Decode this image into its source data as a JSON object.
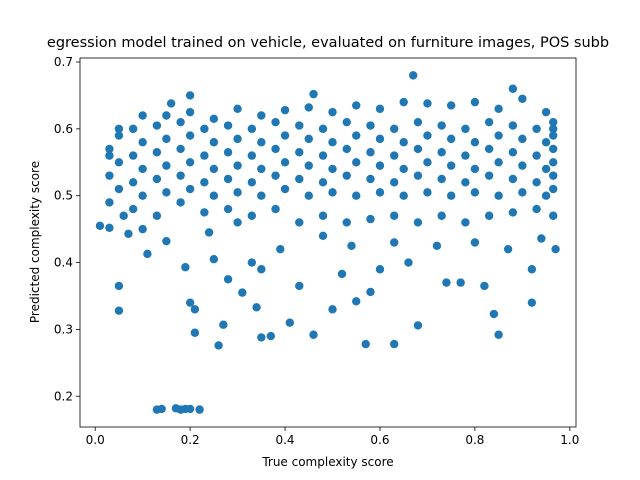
{
  "chart_data": {
    "type": "scatter",
    "title": "egression model trained on vehicle, evaluated on furniture images, POS subb",
    "x_label": "True complexity score",
    "y_label": "Predicted complexity score",
    "color": "#1f77b4",
    "xlim": [
      -0.032,
      1.013
    ],
    "ylim": [
      0.154,
      0.706
    ],
    "xticks": [
      {
        "value": 0,
        "label": "0.0"
      },
      0.2,
      0.4,
      0.6,
      0.8,
      {
        "value": 1,
        "label": "1.0"
      }
    ],
    "yticks": [
      0.2,
      0.3,
      0.4,
      0.5,
      0.6,
      0.7
    ],
    "x": [
      0.13,
      0.14,
      0.17,
      0.18,
      0.19,
      0.2,
      0.22,
      0.05,
      0.05,
      0.26,
      0.35,
      0.37,
      0.46,
      0.57,
      0.63,
      0.68,
      0.85,
      0.84,
      0.92,
      0.2,
      0.21,
      0.21,
      0.27,
      0.31,
      0.34,
      0.5,
      0.55,
      0.58,
      0.67,
      0.2,
      0.16,
      0.88,
      0.46,
      0.41,
      0.19,
      0.11,
      0.97,
      0.92,
      0.82,
      0.77,
      0.74,
      0.66,
      0.6,
      0.52,
      0.43,
      0.35,
      0.28,
      0.25,
      0.15,
      0.07,
      0.01,
      0.03,
      0.06,
      0.1,
      0.94,
      0.87,
      0.8,
      0.72,
      0.63,
      0.54,
      0.48,
      0.39,
      0.33,
      0.24,
      0.3,
      0.03,
      0.05,
      0.03,
      0.05,
      0.03,
      0.05,
      0.03,
      0.05,
      0.08,
      0.1,
      0.08,
      0.1,
      0.08,
      0.1,
      0.08,
      0.1,
      0.13,
      0.15,
      0.13,
      0.15,
      0.13,
      0.15,
      0.13,
      0.15,
      0.18,
      0.2,
      0.18,
      0.2,
      0.18,
      0.2,
      0.18,
      0.2,
      0.23,
      0.25,
      0.23,
      0.25,
      0.23,
      0.25,
      0.23,
      0.25,
      0.28,
      0.3,
      0.28,
      0.3,
      0.28,
      0.3,
      0.28,
      0.3,
      0.33,
      0.35,
      0.33,
      0.35,
      0.33,
      0.35,
      0.33,
      0.35,
      0.38,
      0.4,
      0.38,
      0.4,
      0.38,
      0.4,
      0.38,
      0.4,
      0.43,
      0.45,
      0.43,
      0.45,
      0.43,
      0.45,
      0.43,
      0.45,
      0.48,
      0.5,
      0.48,
      0.5,
      0.48,
      0.5,
      0.48,
      0.5,
      0.53,
      0.55,
      0.53,
      0.55,
      0.53,
      0.55,
      0.53,
      0.55,
      0.58,
      0.6,
      0.58,
      0.6,
      0.58,
      0.6,
      0.58,
      0.6,
      0.63,
      0.65,
      0.63,
      0.65,
      0.63,
      0.65,
      0.63,
      0.65,
      0.68,
      0.7,
      0.68,
      0.7,
      0.68,
      0.7,
      0.68,
      0.7,
      0.73,
      0.75,
      0.73,
      0.75,
      0.73,
      0.75,
      0.73,
      0.75,
      0.78,
      0.8,
      0.78,
      0.8,
      0.78,
      0.8,
      0.78,
      0.8,
      0.83,
      0.85,
      0.83,
      0.85,
      0.83,
      0.85,
      0.83,
      0.85,
      0.88,
      0.9,
      0.88,
      0.9,
      0.88,
      0.9,
      0.88,
      0.9,
      0.93,
      0.95,
      0.93,
      0.95,
      0.93,
      0.95,
      0.93,
      0.95,
      0.965,
      0.965,
      0.965,
      0.965,
      0.965,
      0.965,
      0.965,
      0.965
    ],
    "y": [
      0.18,
      0.181,
      0.182,
      0.18,
      0.181,
      0.181,
      0.18,
      0.365,
      0.328,
      0.276,
      0.288,
      0.29,
      0.292,
      0.278,
      0.278,
      0.306,
      0.292,
      0.323,
      0.34,
      0.34,
      0.33,
      0.295,
      0.307,
      0.355,
      0.333,
      0.33,
      0.342,
      0.356,
      0.68,
      0.65,
      0.638,
      0.66,
      0.652,
      0.31,
      0.393,
      0.413,
      0.42,
      0.39,
      0.365,
      0.37,
      0.37,
      0.4,
      0.39,
      0.383,
      0.365,
      0.39,
      0.375,
      0.405,
      0.432,
      0.443,
      0.455,
      0.452,
      0.47,
      0.45,
      0.436,
      0.42,
      0.43,
      0.425,
      0.43,
      0.425,
      0.44,
      0.42,
      0.4,
      0.445,
      0.46,
      0.49,
      0.51,
      0.53,
      0.55,
      0.57,
      0.59,
      0.56,
      0.6,
      0.48,
      0.5,
      0.52,
      0.54,
      0.56,
      0.58,
      0.6,
      0.62,
      0.47,
      0.505,
      0.525,
      0.545,
      0.565,
      0.585,
      0.605,
      0.62,
      0.49,
      0.51,
      0.53,
      0.55,
      0.57,
      0.59,
      0.61,
      0.625,
      0.475,
      0.5,
      0.52,
      0.54,
      0.56,
      0.58,
      0.6,
      0.615,
      0.48,
      0.505,
      0.525,
      0.545,
      0.565,
      0.585,
      0.605,
      0.63,
      0.47,
      0.5,
      0.52,
      0.54,
      0.56,
      0.58,
      0.6,
      0.62,
      0.48,
      0.51,
      0.53,
      0.55,
      0.57,
      0.59,
      0.61,
      0.628,
      0.46,
      0.5,
      0.525,
      0.545,
      0.565,
      0.585,
      0.605,
      0.632,
      0.47,
      0.505,
      0.52,
      0.54,
      0.56,
      0.58,
      0.6,
      0.625,
      0.46,
      0.5,
      0.53,
      0.55,
      0.57,
      0.59,
      0.61,
      0.635,
      0.465,
      0.505,
      0.525,
      0.545,
      0.565,
      0.585,
      0.605,
      0.63,
      0.47,
      0.5,
      0.52,
      0.54,
      0.56,
      0.58,
      0.6,
      0.64,
      0.46,
      0.505,
      0.53,
      0.55,
      0.57,
      0.59,
      0.61,
      0.638,
      0.47,
      0.5,
      0.525,
      0.545,
      0.565,
      0.585,
      0.605,
      0.635,
      0.46,
      0.505,
      0.52,
      0.54,
      0.56,
      0.58,
      0.6,
      0.64,
      0.47,
      0.5,
      0.53,
      0.55,
      0.57,
      0.59,
      0.61,
      0.63,
      0.475,
      0.505,
      0.525,
      0.545,
      0.565,
      0.585,
      0.605,
      0.645,
      0.48,
      0.5,
      0.52,
      0.54,
      0.56,
      0.58,
      0.6,
      0.625,
      0.51,
      0.47,
      0.55,
      0.53,
      0.57,
      0.59,
      0.61,
      0.6
    ]
  }
}
